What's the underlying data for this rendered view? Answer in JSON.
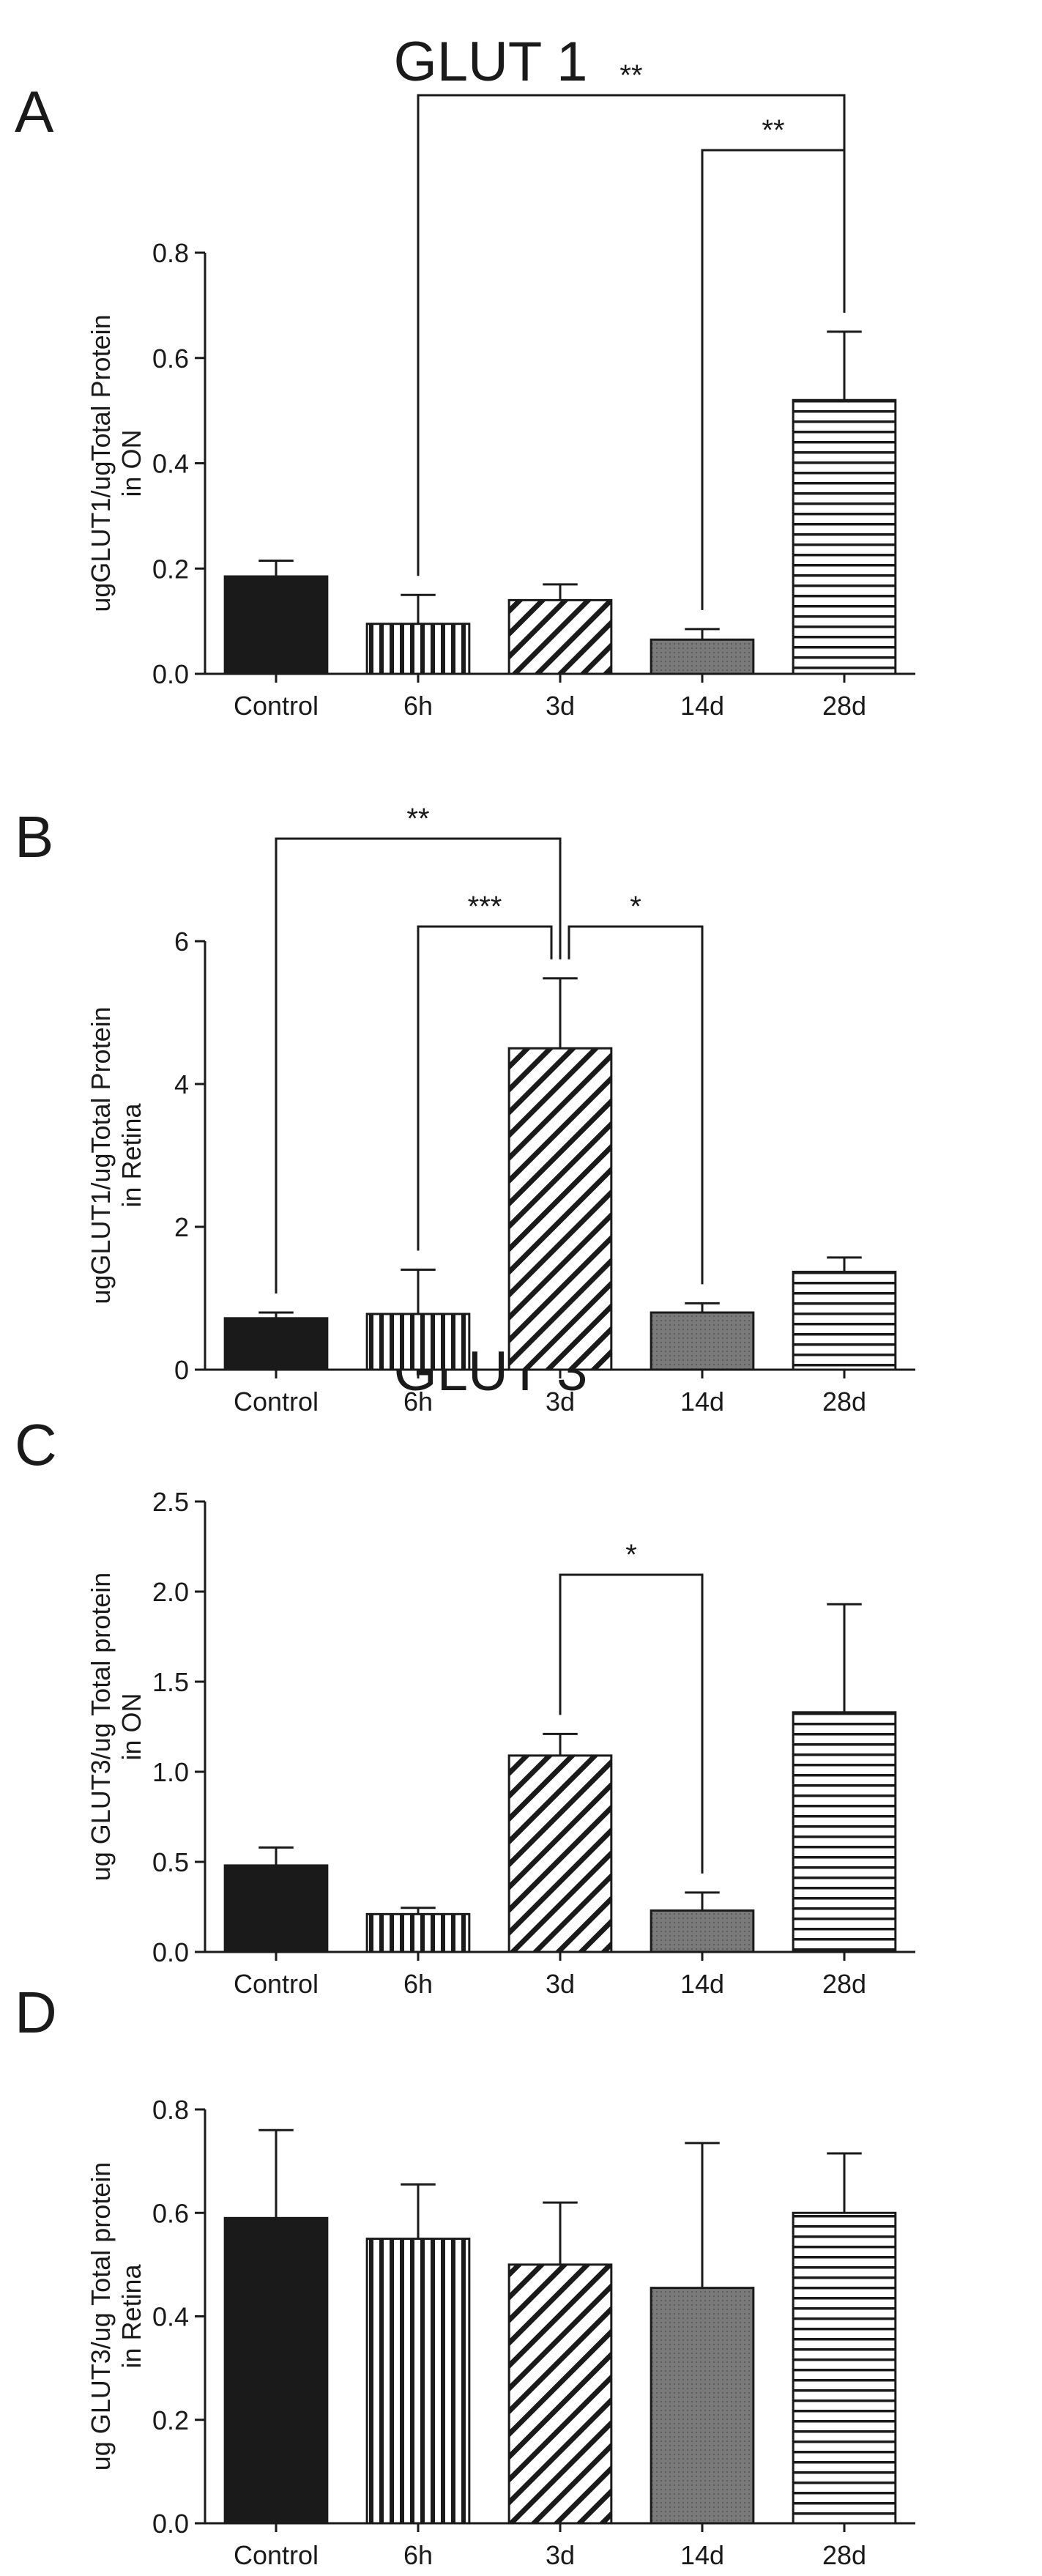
{
  "group_titles": [
    "GLUT 1",
    "GLUT 3"
  ],
  "colors": {
    "ink": "#1a1a1a",
    "dark_gray": "#7a7a7a",
    "background": "#ffffff"
  },
  "chart_data": [
    {
      "panel": "A",
      "type": "bar",
      "categories": [
        "Control",
        "6h",
        "3d",
        "14d",
        "28d"
      ],
      "values": [
        0.185,
        0.095,
        0.14,
        0.065,
        0.52
      ],
      "errors": [
        0.03,
        0.055,
        0.03,
        0.02,
        0.13
      ],
      "bar_patterns": [
        "solid",
        "vertical-stripes",
        "diagonal-stripes",
        "dots",
        "horizontal-stripes"
      ],
      "ylabel": "ugGLUT1/ugTotal Protein in ON",
      "ylim": [
        0,
        0.8
      ],
      "yticks": [
        "0.0",
        "0.2",
        "0.4",
        "0.6",
        "0.8"
      ],
      "grid": false,
      "significance": [
        {
          "from": "6h",
          "to": "28d",
          "label": "**"
        },
        {
          "from": "14d",
          "to": "28d",
          "label": "**"
        }
      ]
    },
    {
      "panel": "B",
      "type": "bar",
      "categories": [
        "Control",
        "6h",
        "3d",
        "14d",
        "28d"
      ],
      "values": [
        0.72,
        0.78,
        4.5,
        0.8,
        1.37
      ],
      "errors": [
        0.08,
        0.62,
        0.98,
        0.13,
        0.2
      ],
      "bar_patterns": [
        "solid",
        "vertical-stripes",
        "diagonal-stripes",
        "dots",
        "horizontal-stripes"
      ],
      "ylabel": "ugGLUT1/ugTotal Protein in Retina",
      "ylim": [
        0,
        6
      ],
      "yticks": [
        "0",
        "2",
        "4",
        "6"
      ],
      "grid": false,
      "significance": [
        {
          "from": "Control",
          "to": "3d",
          "label": "**"
        },
        {
          "from": "6h",
          "to": "3d",
          "label": "***"
        },
        {
          "from": "3d",
          "to": "14d",
          "label": "*"
        }
      ]
    },
    {
      "panel": "C",
      "type": "bar",
      "categories": [
        "Control",
        "6h",
        "3d",
        "14d",
        "28d"
      ],
      "values": [
        0.48,
        0.21,
        1.09,
        0.23,
        1.33
      ],
      "errors": [
        0.1,
        0.035,
        0.12,
        0.1,
        0.6
      ],
      "bar_patterns": [
        "solid",
        "vertical-stripes",
        "diagonal-stripes",
        "dots",
        "horizontal-stripes"
      ],
      "ylabel": "ug GLUT3/ug Total protein in ON",
      "ylim": [
        0,
        2.5
      ],
      "yticks": [
        "0.0",
        "0.5",
        "1.0",
        "1.5",
        "2.0",
        "2.5"
      ],
      "grid": false,
      "significance": [
        {
          "from": "3d",
          "to": "14d",
          "label": "*"
        }
      ]
    },
    {
      "panel": "D",
      "type": "bar",
      "categories": [
        "Control",
        "6h",
        "3d",
        "14d",
        "28d"
      ],
      "values": [
        0.59,
        0.55,
        0.5,
        0.455,
        0.6
      ],
      "errors": [
        0.17,
        0.105,
        0.12,
        0.28,
        0.115
      ],
      "bar_patterns": [
        "solid",
        "vertical-stripes",
        "diagonal-stripes",
        "dots",
        "horizontal-stripes"
      ],
      "ylabel": "ug GLUT3/ug Total protein in Retina",
      "ylim": [
        0,
        0.8
      ],
      "yticks": [
        "0.0",
        "0.2",
        "0.4",
        "0.6",
        "0.8"
      ],
      "grid": false,
      "significance": []
    }
  ]
}
